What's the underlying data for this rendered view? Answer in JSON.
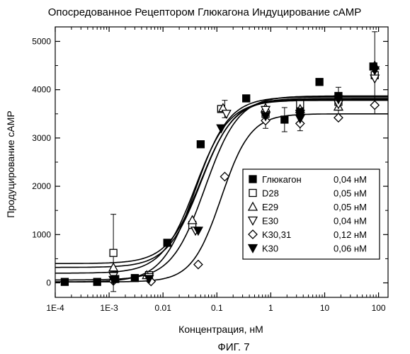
{
  "chart_data": {
    "type": "scatter",
    "title": "Опосредованное Рецептором Глюкагона Индуцирование cAMP",
    "xlabel": "Концентрация, нМ",
    "ylabel": "Продуцирование cAMP",
    "x_scale": "log",
    "xlim": [
      0.0001,
      150
    ],
    "ylim": [
      -300,
      5300
    ],
    "x_ticks": [
      {
        "value": 0.0001,
        "label": "1E-4"
      },
      {
        "value": 0.001,
        "label": "1E-3"
      },
      {
        "value": 0.01,
        "label": "0.01"
      },
      {
        "value": 0.1,
        "label": "0.1"
      },
      {
        "value": 1,
        "label": "1"
      },
      {
        "value": 10,
        "label": "10"
      },
      {
        "value": 100,
        "label": "100"
      }
    ],
    "y_ticks": [
      {
        "value": 0,
        "label": "0"
      },
      {
        "value": 1000,
        "label": "1000"
      },
      {
        "value": 2000,
        "label": "2000"
      },
      {
        "value": 3000,
        "label": "3000"
      },
      {
        "value": 4000,
        "label": "4000"
      },
      {
        "value": 5000,
        "label": "5000"
      }
    ],
    "legend_position": "bottom-right",
    "series": [
      {
        "name": "Глюкагон",
        "ec50_label": "0,04 нМ",
        "marker": "square-filled",
        "fit": {
          "bottom": 20,
          "top": 3850,
          "ec50": 0.04,
          "hill": 1.4
        },
        "points": [
          [
            0.00015,
            20
          ],
          [
            0.0006,
            20
          ],
          [
            0.0013,
            80
          ],
          [
            0.003,
            100
          ],
          [
            0.012,
            830
          ],
          [
            0.05,
            2870
          ],
          [
            0.35,
            3820
          ],
          [
            1.8,
            3380
          ],
          [
            3.5,
            3540
          ],
          [
            8,
            4160
          ],
          [
            18,
            3870
          ],
          [
            80,
            4480
          ]
        ]
      },
      {
        "name": "D28",
        "ec50_label": "0,05 нМ",
        "marker": "square-open",
        "fit": {
          "bottom": 400,
          "top": 3800,
          "ec50": 0.05,
          "hill": 1.4
        },
        "points": [
          [
            0.0012,
            620
          ],
          [
            0.0055,
            160
          ],
          [
            0.035,
            1200
          ],
          [
            0.12,
            3600
          ],
          [
            0.8,
            3500
          ],
          [
            3.5,
            3700
          ],
          [
            18,
            3750
          ],
          [
            85,
            4300
          ]
        ],
        "error_points": [
          {
            "x": 0.0012,
            "y": 620,
            "err": 800
          }
        ]
      },
      {
        "name": "E29",
        "ec50_label": "0,05 нМ",
        "marker": "triangle-up-open",
        "fit": {
          "bottom": 320,
          "top": 3820,
          "ec50": 0.05,
          "hill": 1.4
        },
        "points": [
          [
            0.0012,
            320
          ],
          [
            0.005,
            160
          ],
          [
            0.035,
            1300
          ],
          [
            0.13,
            3620
          ],
          [
            0.8,
            3620
          ],
          [
            3.5,
            3600
          ],
          [
            18,
            3650
          ],
          [
            85,
            4500
          ]
        ]
      },
      {
        "name": "E30",
        "ec50_label": "0,04 нМ",
        "marker": "triangle-down-open",
        "fit": {
          "bottom": 200,
          "top": 3780,
          "ec50": 0.04,
          "hill": 1.4
        },
        "points": [
          [
            0.0012,
            140
          ],
          [
            0.0055,
            120
          ],
          [
            0.04,
            1080
          ],
          [
            0.15,
            3500
          ],
          [
            0.8,
            3580
          ],
          [
            3.5,
            3500
          ],
          [
            18,
            3700
          ],
          [
            85,
            4230
          ]
        ]
      },
      {
        "name": "K30,31",
        "ec50_label": "0,12 нМ",
        "marker": "diamond-open",
        "fit": {
          "bottom": 20,
          "top": 3500,
          "ec50": 0.12,
          "hill": 1.6
        },
        "points": [
          [
            0.0012,
            40
          ],
          [
            0.006,
            30
          ],
          [
            0.045,
            380
          ],
          [
            0.14,
            2200
          ],
          [
            0.8,
            3360
          ],
          [
            3.5,
            3300
          ],
          [
            18,
            3420
          ],
          [
            85,
            3680
          ]
        ]
      },
      {
        "name": "K30",
        "ec50_label": "0,06 нМ",
        "marker": "triangle-down-filled",
        "fit": {
          "bottom": 60,
          "top": 3870,
          "ec50": 0.06,
          "hill": 1.4
        },
        "points": [
          [
            0.0012,
            60
          ],
          [
            0.0055,
            80
          ],
          [
            0.045,
            1080
          ],
          [
            0.12,
            3200
          ],
          [
            0.8,
            3450
          ],
          [
            3.5,
            3400
          ],
          [
            18,
            3800
          ],
          [
            85,
            4400
          ]
        ],
        "error_points": [
          {
            "x": 0.14,
            "y": 3600,
            "err": 180
          },
          {
            "x": 0.8,
            "y": 3400,
            "err": 200
          },
          {
            "x": 1.8,
            "y": 3380,
            "err": 250
          },
          {
            "x": 3.5,
            "y": 3350,
            "err": 200
          },
          {
            "x": 18,
            "y": 3750,
            "err": 300
          },
          {
            "x": 85,
            "y": 4350,
            "err": 850
          }
        ]
      }
    ]
  },
  "figure_caption": "ФИГ. 7"
}
